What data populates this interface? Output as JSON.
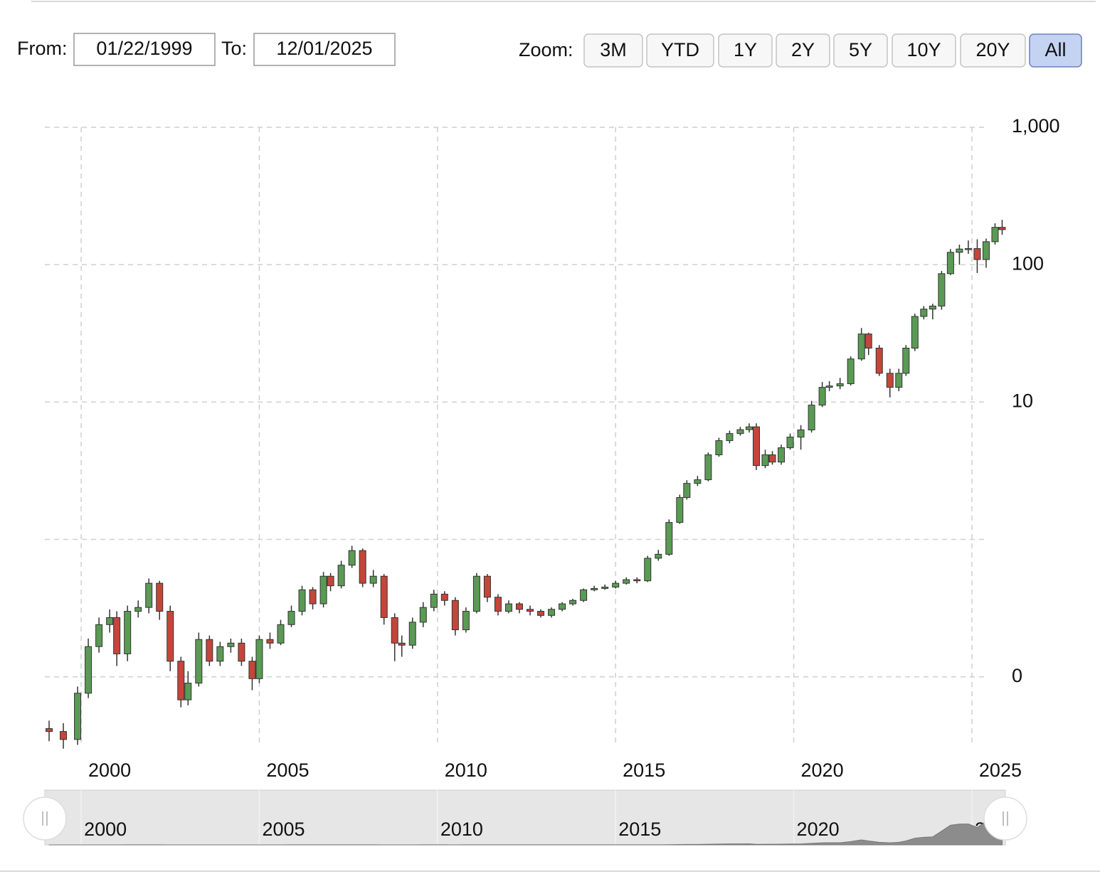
{
  "controls": {
    "from_label": "From:",
    "from": "01/22/1999",
    "to_label": "To:",
    "to": "12/01/2025",
    "zoom_label": "Zoom:",
    "zoom_buttons": [
      "3M",
      "YTD",
      "1Y",
      "2Y",
      "5Y",
      "10Y",
      "20Y",
      "All"
    ],
    "zoom_selected": 7
  },
  "chart_data": {
    "type": "candlestick",
    "log_scale": true,
    "grid": true,
    "up_color": "#5b9a55",
    "down_color": "#c4463a",
    "navigator_color": "#8c8c8c",
    "xlim": [
      1998.98,
      2025.94
    ],
    "xticks": [
      2000,
      2005,
      2010,
      2015,
      2020,
      2025
    ],
    "ylim": [
      0.031,
      1000
    ],
    "yticks": [
      {
        "value": 1000,
        "label": "1,000"
      },
      100,
      10,
      {
        "value": 1,
        "label": null
      },
      {
        "value": 0.1,
        "label": "0"
      }
    ],
    "x": [
      1999.1,
      1999.5,
      1999.9,
      2000.2,
      2000.5,
      2000.8,
      2001.0,
      2001.3,
      2001.6,
      2001.9,
      2002.2,
      2002.5,
      2002.8,
      2003.0,
      2003.3,
      2003.6,
      2003.9,
      2004.2,
      2004.5,
      2004.8,
      2005.0,
      2005.3,
      2005.6,
      2005.9,
      2006.2,
      2006.5,
      2006.8,
      2007.0,
      2007.3,
      2007.6,
      2007.9,
      2008.2,
      2008.5,
      2008.8,
      2009.0,
      2009.3,
      2009.6,
      2009.9,
      2010.2,
      2010.5,
      2010.8,
      2011.1,
      2011.4,
      2011.7,
      2012.0,
      2012.3,
      2012.6,
      2012.9,
      2013.2,
      2013.5,
      2013.8,
      2014.1,
      2014.4,
      2014.7,
      2015.0,
      2015.3,
      2015.6,
      2015.9,
      2016.2,
      2016.5,
      2016.8,
      2017.0,
      2017.3,
      2017.6,
      2017.9,
      2018.2,
      2018.5,
      2018.75,
      2018.95,
      2019.2,
      2019.4,
      2019.65,
      2019.9,
      2020.2,
      2020.5,
      2020.8,
      2021.0,
      2021.3,
      2021.6,
      2021.9,
      2022.1,
      2022.4,
      2022.7,
      2022.95,
      2023.15,
      2023.4,
      2023.65,
      2023.9,
      2024.15,
      2024.4,
      2024.65,
      2024.9,
      2025.15,
      2025.4,
      2025.65,
      2025.85
    ],
    "open": [
      0.042,
      0.04,
      0.035,
      0.076,
      0.166,
      0.24,
      0.27,
      0.147,
      0.3,
      0.32,
      0.48,
      0.3,
      0.13,
      0.068,
      0.09,
      0.187,
      0.13,
      0.166,
      0.176,
      0.13,
      0.097,
      0.187,
      0.176,
      0.24,
      0.3,
      0.43,
      0.34,
      0.54,
      0.46,
      0.65,
      0.83,
      0.48,
      0.54,
      0.27,
      0.176,
      0.17,
      0.25,
      0.32,
      0.4,
      0.36,
      0.22,
      0.3,
      0.54,
      0.38,
      0.3,
      0.34,
      0.31,
      0.3,
      0.28,
      0.31,
      0.34,
      0.36,
      0.43,
      0.44,
      0.45,
      0.48,
      0.51,
      0.5,
      0.73,
      0.78,
      1.33,
      2.02,
      2.56,
      2.72,
      4.13,
      5.24,
      5.9,
      6.3,
      6.6,
      3.45,
      4.13,
      3.66,
      4.65,
      5.56,
      6.27,
      9.5,
      12.8,
      13.1,
      13.6,
      20.6,
      31.3,
      24.7,
      16.2,
      12.8,
      16.2,
      24.7,
      42,
      47.5,
      50,
      86,
      123,
      130,
      131,
      109,
      147,
      187
    ],
    "high": [
      0.048,
      0.046,
      0.085,
      0.19,
      0.27,
      0.31,
      0.3,
      0.33,
      0.36,
      0.52,
      0.5,
      0.33,
      0.14,
      0.11,
      0.21,
      0.2,
      0.18,
      0.19,
      0.19,
      0.14,
      0.2,
      0.21,
      0.26,
      0.33,
      0.46,
      0.45,
      0.58,
      0.57,
      0.7,
      0.9,
      0.86,
      0.6,
      0.56,
      0.29,
      0.2,
      0.27,
      0.35,
      0.43,
      0.42,
      0.38,
      0.32,
      0.57,
      0.56,
      0.4,
      0.36,
      0.35,
      0.33,
      0.31,
      0.32,
      0.35,
      0.37,
      0.44,
      0.46,
      0.47,
      0.5,
      0.53,
      0.53,
      0.76,
      0.84,
      1.4,
      2.12,
      2.7,
      2.9,
      4.3,
      5.5,
      6.2,
      6.6,
      7.0,
      7.0,
      4.5,
      4.4,
      4.9,
      5.9,
      6.8,
      10.2,
      14.0,
      14.2,
      15.0,
      21.5,
      34.6,
      32,
      26,
      17.5,
      17.5,
      26,
      44,
      50,
      52,
      90,
      130,
      140,
      150,
      153,
      155,
      200,
      212
    ],
    "low": [
      0.034,
      0.03,
      0.032,
      0.07,
      0.15,
      0.21,
      0.12,
      0.13,
      0.27,
      0.29,
      0.26,
      0.11,
      0.06,
      0.062,
      0.085,
      0.12,
      0.12,
      0.15,
      0.12,
      0.08,
      0.09,
      0.16,
      0.17,
      0.23,
      0.28,
      0.31,
      0.32,
      0.42,
      0.44,
      0.62,
      0.45,
      0.45,
      0.24,
      0.13,
      0.14,
      0.16,
      0.23,
      0.3,
      0.33,
      0.2,
      0.21,
      0.29,
      0.35,
      0.28,
      0.29,
      0.29,
      0.28,
      0.27,
      0.27,
      0.3,
      0.33,
      0.35,
      0.42,
      0.43,
      0.44,
      0.47,
      0.48,
      0.49,
      0.7,
      0.76,
      1.3,
      1.95,
      2.45,
      2.65,
      4.0,
      5.0,
      5.7,
      6.0,
      3.2,
      3.3,
      3.5,
      3.5,
      4.5,
      4.5,
      6.0,
      9.2,
      12.0,
      12.4,
      13.2,
      20.0,
      22,
      15.5,
      10.8,
      12,
      15.5,
      23.5,
      40,
      40,
      47,
      84,
      100,
      120,
      87,
      95,
      140,
      165
    ],
    "close": [
      0.04,
      0.035,
      0.076,
      0.166,
      0.24,
      0.27,
      0.147,
      0.3,
      0.32,
      0.48,
      0.3,
      0.13,
      0.068,
      0.09,
      0.187,
      0.13,
      0.166,
      0.176,
      0.13,
      0.097,
      0.187,
      0.176,
      0.24,
      0.3,
      0.43,
      0.34,
      0.54,
      0.46,
      0.65,
      0.83,
      0.48,
      0.54,
      0.27,
      0.176,
      0.17,
      0.25,
      0.32,
      0.4,
      0.36,
      0.22,
      0.3,
      0.54,
      0.38,
      0.3,
      0.34,
      0.31,
      0.3,
      0.28,
      0.31,
      0.34,
      0.36,
      0.43,
      0.44,
      0.45,
      0.48,
      0.51,
      0.5,
      0.73,
      0.78,
      1.33,
      2.02,
      2.56,
      2.72,
      4.13,
      5.24,
      5.9,
      6.3,
      6.6,
      3.45,
      4.13,
      3.66,
      4.65,
      5.56,
      6.27,
      9.5,
      12.8,
      13.1,
      13.6,
      20.6,
      31.3,
      24.7,
      16.2,
      12.8,
      16.2,
      24.7,
      42,
      47.5,
      50,
      86,
      123,
      130,
      131,
      109,
      147,
      187,
      180
    ]
  }
}
